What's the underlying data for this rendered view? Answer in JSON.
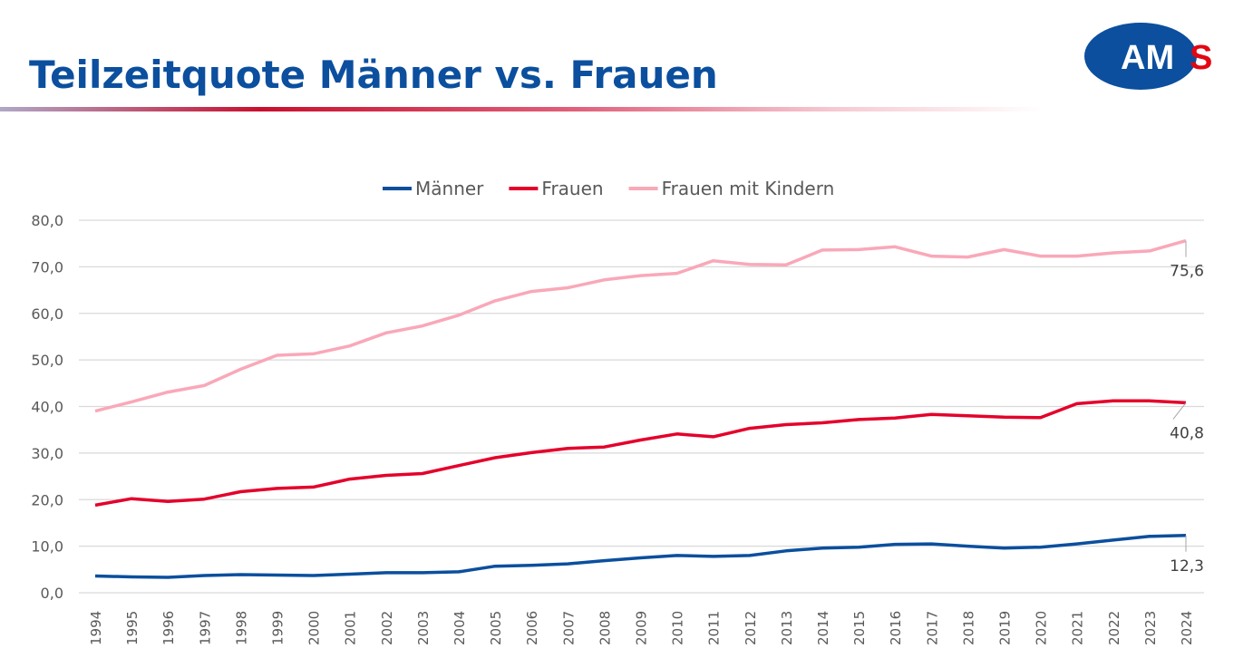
{
  "title": "Teilzeitquote Männer vs. Frauen",
  "logo": {
    "text": "AMS",
    "colors": {
      "ellipse": "#0b4f9e",
      "letters": "#ffffff",
      "accent": "#e30613"
    }
  },
  "chart_data": {
    "type": "line",
    "title": "",
    "xlabel": "",
    "ylabel": "",
    "ylim": [
      0,
      80
    ],
    "yticks": [
      "0,0",
      "10,0",
      "20,0",
      "30,0",
      "40,0",
      "50,0",
      "60,0",
      "70,0",
      "80,0"
    ],
    "grid": true,
    "legend": "top-center",
    "x": [
      "1994",
      "1995",
      "1996",
      "1997",
      "1998",
      "1999",
      "2000",
      "2001",
      "2002",
      "2003",
      "2004",
      "2005",
      "2006",
      "2007",
      "2008",
      "2009",
      "2010",
      "2011",
      "2012",
      "2013",
      "2014",
      "2015",
      "2016",
      "2017",
      "2018",
      "2019",
      "2020",
      "2021",
      "2022",
      "2023",
      "2024"
    ],
    "series": [
      {
        "name": "Männer",
        "color": "#0b4f9e",
        "label": "12,3",
        "values": [
          3.6,
          3.4,
          3.3,
          3.7,
          3.9,
          3.8,
          3.7,
          4.0,
          4.3,
          4.3,
          4.5,
          5.7,
          5.9,
          6.2,
          6.9,
          7.5,
          8.0,
          7.8,
          8.0,
          9.0,
          9.6,
          9.8,
          10.4,
          10.5,
          10.0,
          9.6,
          9.8,
          10.5,
          11.3,
          12.1,
          12.3
        ]
      },
      {
        "name": "Frauen",
        "color": "#e4002b",
        "label": "40,8",
        "values": [
          18.8,
          20.2,
          19.6,
          20.1,
          21.7,
          22.4,
          22.7,
          24.4,
          25.2,
          25.6,
          27.3,
          29.0,
          30.1,
          31.0,
          31.3,
          32.8,
          34.1,
          33.5,
          35.3,
          36.1,
          36.5,
          37.2,
          37.5,
          38.3,
          38.0,
          37.7,
          37.6,
          40.6,
          41.2,
          41.2,
          40.8
        ]
      },
      {
        "name": "Frauen mit Kindern",
        "color": "#f9a8b8",
        "label": "75,6",
        "values": [
          39.0,
          41.0,
          43.1,
          44.5,
          48.0,
          51.0,
          51.3,
          53.0,
          55.8,
          57.3,
          59.6,
          62.7,
          64.7,
          65.5,
          67.2,
          68.1,
          68.6,
          71.3,
          70.5,
          70.4,
          73.6,
          73.7,
          74.3,
          72.3,
          72.1,
          73.7,
          72.3,
          72.3,
          73.0,
          73.4,
          75.6
        ]
      }
    ]
  }
}
